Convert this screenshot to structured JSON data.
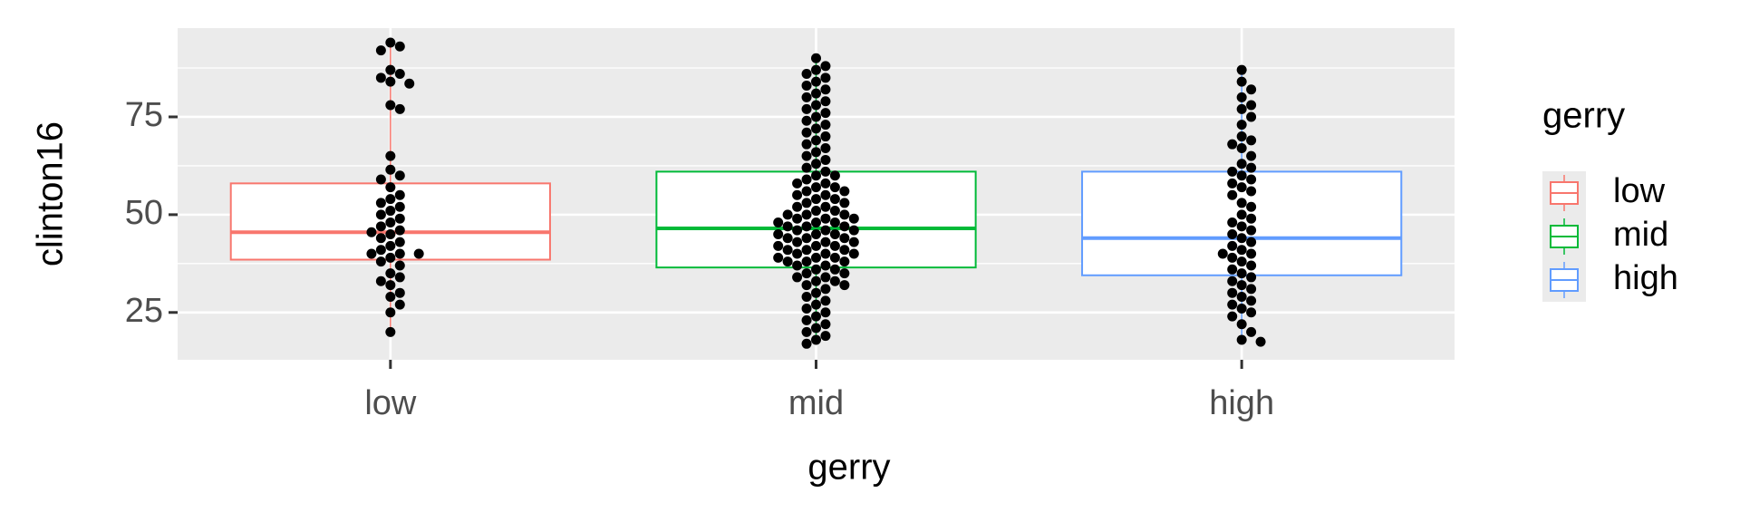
{
  "chart_data": {
    "type": "box",
    "x_label": "gerry",
    "y_label": "clinton16",
    "legend_title": "gerry",
    "categories": [
      "low",
      "mid",
      "high"
    ],
    "ylim": [
      12.9,
      97.7
    ],
    "yticks": [
      25,
      50,
      75
    ],
    "grid": true,
    "legend_position": "right",
    "series": [
      {
        "name": "low",
        "color": "#f8766d",
        "q1": 38.5,
        "median": 45.5,
        "q3": 58,
        "whisker_low": 20,
        "whisker_high": 93,
        "points": [
          94,
          93,
          92,
          87,
          86,
          85,
          84,
          83.5,
          78,
          77,
          65,
          61.5,
          60,
          59,
          57,
          55,
          54,
          53,
          52,
          51,
          50,
          49,
          48,
          47,
          46,
          45.5,
          45,
          44,
          43,
          42,
          41,
          40,
          40,
          40,
          39,
          38,
          37,
          35,
          34,
          33,
          32,
          30,
          29,
          27,
          25,
          20
        ]
      },
      {
        "name": "mid",
        "color": "#00ba38",
        "q1": 36.5,
        "median": 46.5,
        "q3": 61,
        "whisker_low": 17,
        "whisker_high": 90,
        "points": [
          90,
          88,
          87,
          86,
          85,
          84,
          83,
          82,
          81,
          80,
          79,
          78,
          77,
          76,
          75,
          74,
          73,
          72,
          71,
          70,
          69,
          68,
          67,
          66,
          65,
          64,
          63,
          62,
          61,
          60,
          60,
          59,
          58,
          58,
          57,
          57,
          56,
          56,
          55,
          55,
          54,
          54,
          53,
          53,
          52,
          52,
          51,
          51,
          50,
          50,
          50,
          49,
          49,
          49,
          48,
          48,
          48,
          47,
          47,
          47,
          46,
          46,
          46,
          45,
          45,
          45,
          44,
          44,
          44,
          43,
          43,
          43,
          42,
          42,
          42,
          41,
          41,
          41,
          40,
          40,
          40,
          39,
          39,
          39,
          38,
          38,
          38,
          37,
          37,
          36,
          36,
          35,
          35,
          34,
          34,
          33,
          33,
          32,
          32,
          31,
          30,
          29,
          28,
          27,
          26,
          25,
          24,
          23,
          22,
          21,
          20,
          19,
          18,
          17
        ]
      },
      {
        "name": "high",
        "color": "#619cff",
        "q1": 34.5,
        "median": 44,
        "q3": 61,
        "whisker_low": 17.5,
        "whisker_high": 87,
        "points": [
          87,
          84,
          82,
          80,
          78,
          77,
          75,
          73,
          70,
          69,
          68,
          67,
          65,
          63,
          62,
          61,
          60,
          59,
          58,
          57,
          56,
          55,
          53,
          52,
          50,
          49,
          48,
          47,
          46,
          45,
          44,
          43,
          42,
          41,
          40,
          40,
          39,
          38,
          37,
          36,
          35,
          34,
          33,
          32,
          31,
          30,
          29,
          28,
          27,
          26,
          25,
          24,
          22,
          20,
          18,
          17.5
        ]
      }
    ]
  }
}
